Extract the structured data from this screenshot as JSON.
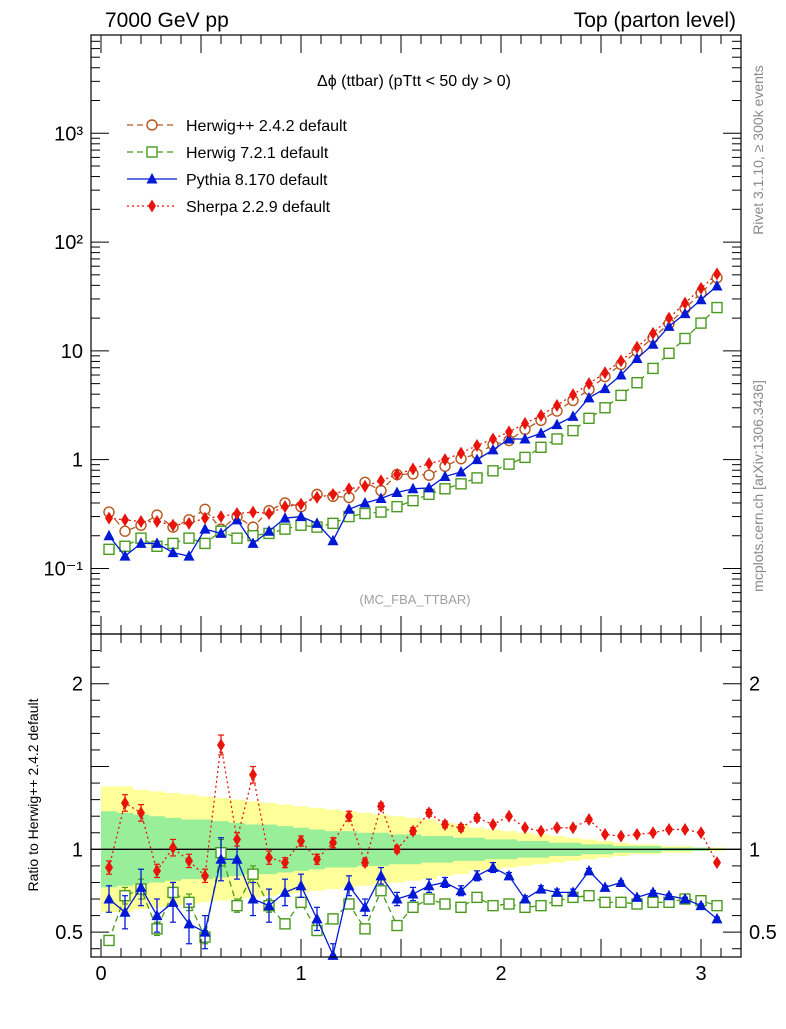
{
  "header": {
    "left": "7000 GeV pp",
    "right": "Top (parton level)"
  },
  "side_labels": {
    "rivet": "Rivet 3.1.10, ≥ 300k events",
    "source": "mcplots.cern.ch [arXiv:1306.3436]"
  },
  "chart_data": [
    {
      "type": "line",
      "panel": "main",
      "title": "Δϕ (ttbar) (pTtt < 50 dy > 0)",
      "watermark": "(MC_FBA_TTBAR)",
      "xlim": [
        -0.05,
        3.2
      ],
      "ylim": [
        0.025,
        8000
      ],
      "yscale": "log",
      "y_ticks": [
        {
          "value": 0.1,
          "label": "10⁻¹"
        },
        {
          "value": 1,
          "label": "1"
        },
        {
          "value": 10,
          "label": "10"
        },
        {
          "value": 100,
          "label": "10²"
        },
        {
          "value": 1000,
          "label": "10³"
        }
      ],
      "legend": "top-left",
      "x": [
        0.04,
        0.12,
        0.2,
        0.28,
        0.36,
        0.44,
        0.52,
        0.6,
        0.68,
        0.76,
        0.84,
        0.92,
        1.0,
        1.08,
        1.16,
        1.24,
        1.32,
        1.4,
        1.48,
        1.56,
        1.64,
        1.72,
        1.8,
        1.88,
        1.96,
        2.04,
        2.12,
        2.2,
        2.28,
        2.36,
        2.44,
        2.52,
        2.6,
        2.68,
        2.76,
        2.84,
        2.92,
        3.0,
        3.08
      ],
      "series": [
        {
          "name": "Herwig++ 2.4.2 default",
          "color": "#b5561e",
          "marker": "open-circle",
          "dash": "6,4",
          "values": [
            0.33,
            0.22,
            0.25,
            0.31,
            0.24,
            0.28,
            0.35,
            0.23,
            0.3,
            0.24,
            0.34,
            0.4,
            0.37,
            0.48,
            0.46,
            0.45,
            0.62,
            0.52,
            0.73,
            0.74,
            0.72,
            0.87,
            1.02,
            1.13,
            1.37,
            1.5,
            1.9,
            2.3,
            2.8,
            3.5,
            4.4,
            5.8,
            7.5,
            9.9,
            13.2,
            17.8,
            24.5,
            34.0,
            47.0
          ]
        },
        {
          "name": "Herwig 7.2.1 default",
          "color": "#4a9a1d",
          "marker": "open-square",
          "dash": "6,4",
          "values": [
            0.15,
            0.16,
            0.19,
            0.16,
            0.17,
            0.19,
            0.17,
            0.22,
            0.19,
            0.2,
            0.21,
            0.23,
            0.25,
            0.24,
            0.26,
            0.3,
            0.32,
            0.33,
            0.37,
            0.42,
            0.48,
            0.54,
            0.6,
            0.68,
            0.79,
            0.91,
            1.05,
            1.3,
            1.55,
            1.85,
            2.4,
            3.0,
            3.9,
            5.1,
            6.9,
            9.5,
            13.0,
            18.0,
            25.0
          ]
        },
        {
          "name": "Pythia 8.170 default",
          "color": "#0019d6",
          "marker": "filled-triangle",
          "dash": "",
          "values": [
            0.2,
            0.13,
            0.17,
            0.17,
            0.14,
            0.13,
            0.23,
            0.21,
            0.28,
            0.17,
            0.22,
            0.29,
            0.3,
            0.26,
            0.18,
            0.35,
            0.4,
            0.44,
            0.5,
            0.54,
            0.55,
            0.7,
            0.77,
            1.0,
            1.23,
            1.55,
            1.55,
            1.75,
            2.1,
            2.5,
            3.7,
            4.5,
            6.0,
            8.5,
            11.5,
            16.8,
            22.0,
            29.5,
            39.5
          ]
        },
        {
          "name": "Sherpa 2.2.9 default",
          "color": "#e8140c",
          "marker": "filled-diamond",
          "dash": "2,3",
          "values": [
            0.29,
            0.28,
            0.27,
            0.27,
            0.25,
            0.26,
            0.29,
            0.3,
            0.32,
            0.33,
            0.32,
            0.37,
            0.39,
            0.45,
            0.48,
            0.54,
            0.57,
            0.64,
            0.73,
            0.82,
            0.92,
            1.0,
            1.15,
            1.35,
            1.55,
            1.8,
            2.15,
            2.55,
            3.15,
            3.95,
            5.0,
            6.3,
            8.1,
            10.8,
            14.5,
            20.0,
            27.5,
            37.5,
            51.0
          ]
        }
      ]
    },
    {
      "type": "line",
      "panel": "ratio",
      "ylabel": "Ratio to Herwig++ 2.4.2 default",
      "xlim": [
        -0.05,
        3.2
      ],
      "ylim": [
        0.35,
        2.3
      ],
      "x_ticks": [
        0,
        1,
        2,
        3
      ],
      "y_ticks": [
        0.5,
        1,
        2
      ],
      "reference_line": 1,
      "band_yellow": [
        0.62,
        0.62,
        0.64,
        0.65,
        0.66,
        0.67,
        0.68,
        0.69,
        0.7,
        0.71,
        0.72,
        0.73,
        0.74,
        0.75,
        0.76,
        0.77,
        0.78,
        0.79,
        0.8,
        0.81,
        0.82,
        0.84,
        0.85,
        0.87,
        0.88,
        0.89,
        0.9,
        0.91,
        0.92,
        0.93,
        0.94,
        0.95,
        0.96,
        0.97,
        0.97,
        0.98,
        0.98,
        0.99,
        0.99
      ],
      "band_green": [
        0.77,
        0.78,
        0.79,
        0.8,
        0.81,
        0.82,
        0.82,
        0.83,
        0.84,
        0.85,
        0.85,
        0.86,
        0.87,
        0.88,
        0.89,
        0.89,
        0.9,
        0.9,
        0.91,
        0.91,
        0.92,
        0.92,
        0.93,
        0.93,
        0.94,
        0.94,
        0.95,
        0.95,
        0.96,
        0.96,
        0.97,
        0.97,
        0.98,
        0.98,
        0.98,
        0.99,
        0.99,
        0.99,
        0.995
      ],
      "series": [
        {
          "name": "Herwig 7.2.1 default",
          "color": "#4a9a1d",
          "marker": "open-square",
          "dash": "6,4",
          "values": [
            0.45,
            0.72,
            0.76,
            0.52,
            0.74,
            0.68,
            0.47,
            0.98,
            0.66,
            0.85,
            0.66,
            0.55,
            0.68,
            0.51,
            0.58,
            0.67,
            0.52,
            0.75,
            0.54,
            0.65,
            0.7,
            0.67,
            0.65,
            0.71,
            0.66,
            0.67,
            0.65,
            0.66,
            0.69,
            0.71,
            0.72,
            0.68,
            0.68,
            0.67,
            0.68,
            0.68,
            0.7,
            0.69,
            0.66
          ],
          "err": [
            0.03,
            0.05,
            0.06,
            0.04,
            0.06,
            0.05,
            0.04,
            0.08,
            0.04,
            0.05,
            0.04,
            0.03,
            0.03,
            0.03,
            0.03,
            0.03,
            0.02,
            0.02,
            0.02,
            0.02,
            0.02,
            0.02,
            0.02,
            0.02,
            0.01,
            0.01,
            0.01,
            0.01,
            0.01,
            0.01,
            0.01,
            0.01,
            0.01,
            0.01,
            0.01,
            0.01,
            0.01,
            0.01,
            0.01
          ]
        },
        {
          "name": "Pythia 8.170 default",
          "color": "#0019d6",
          "marker": "filled-triangle",
          "dash": "",
          "values": [
            0.7,
            0.62,
            0.77,
            0.6,
            0.68,
            0.55,
            0.5,
            0.94,
            0.94,
            0.7,
            0.66,
            0.74,
            0.78,
            0.58,
            0.36,
            0.78,
            0.65,
            0.84,
            0.7,
            0.73,
            0.78,
            0.8,
            0.75,
            0.84,
            0.89,
            0.84,
            0.7,
            0.76,
            0.74,
            0.74,
            0.87,
            0.77,
            0.8,
            0.71,
            0.74,
            0.72,
            0.7,
            0.66,
            0.58
          ],
          "err": [
            0.08,
            0.1,
            0.11,
            0.1,
            0.12,
            0.12,
            0.1,
            0.13,
            0.12,
            0.1,
            0.1,
            0.08,
            0.07,
            0.07,
            0.07,
            0.06,
            0.05,
            0.05,
            0.04,
            0.04,
            0.04,
            0.03,
            0.03,
            0.03,
            0.03,
            0.02,
            0.02,
            0.02,
            0.02,
            0.02,
            0.015,
            0.01,
            0.01,
            0.01,
            0.01,
            0.01,
            0.01,
            0.01,
            0.01
          ]
        },
        {
          "name": "Sherpa 2.2.9 default",
          "color": "#e8140c",
          "marker": "filled-diamond",
          "dash": "2,3",
          "values": [
            0.89,
            1.28,
            1.22,
            0.87,
            1.01,
            0.93,
            0.84,
            1.63,
            1.06,
            1.45,
            0.95,
            0.92,
            1.05,
            0.94,
            1.04,
            1.2,
            0.92,
            1.26,
            1.0,
            1.11,
            1.22,
            1.15,
            1.13,
            1.19,
            1.15,
            1.2,
            1.13,
            1.11,
            1.13,
            1.13,
            1.18,
            1.09,
            1.08,
            1.09,
            1.1,
            1.12,
            1.12,
            1.1,
            0.92
          ],
          "err": [
            0.04,
            0.05,
            0.05,
            0.04,
            0.05,
            0.04,
            0.04,
            0.06,
            0.04,
            0.05,
            0.04,
            0.03,
            0.03,
            0.03,
            0.03,
            0.03,
            0.02,
            0.02,
            0.02,
            0.02,
            0.02,
            0.02,
            0.02,
            0.02,
            0.01,
            0.01,
            0.01,
            0.01,
            0.01,
            0.01,
            0.01,
            0.01,
            0.01,
            0.01,
            0.01,
            0.01,
            0.01,
            0.01,
            0.01
          ]
        }
      ]
    }
  ]
}
